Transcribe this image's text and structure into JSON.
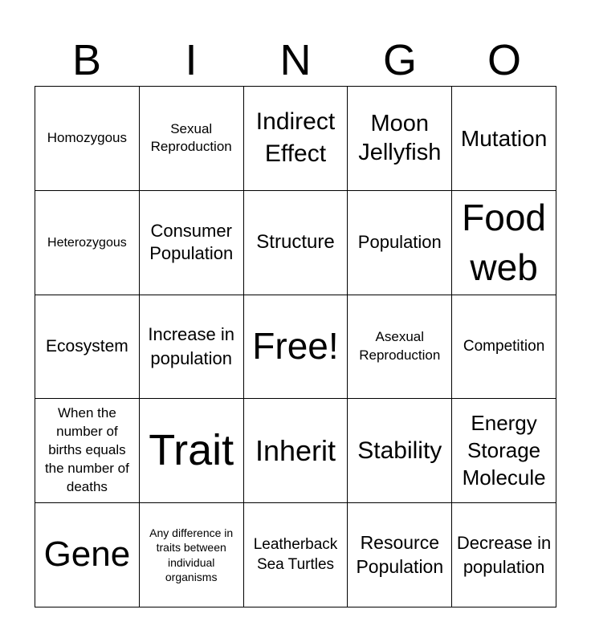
{
  "header": [
    "B",
    "I",
    "N",
    "G",
    "O"
  ],
  "cells": [
    "Homozygous",
    "Sexual Reproduction",
    "Indirect Effect",
    "Moon Jellyfish",
    "Mutation",
    "Heterozygous",
    "Consumer Population",
    "Structure",
    "Population",
    "Food web",
    "Ecosystem",
    "Increase in population",
    "Free!",
    "Asexual Reproduction",
    "Competition",
    "When the number of births equals the number of deaths",
    "Trait",
    "Inherit",
    "Stability",
    "Energy Storage Molecule",
    "Gene",
    "Any difference in traits between individual organisms",
    "Leatherback Sea Turtles",
    "Resource Population",
    "Decrease in population"
  ]
}
